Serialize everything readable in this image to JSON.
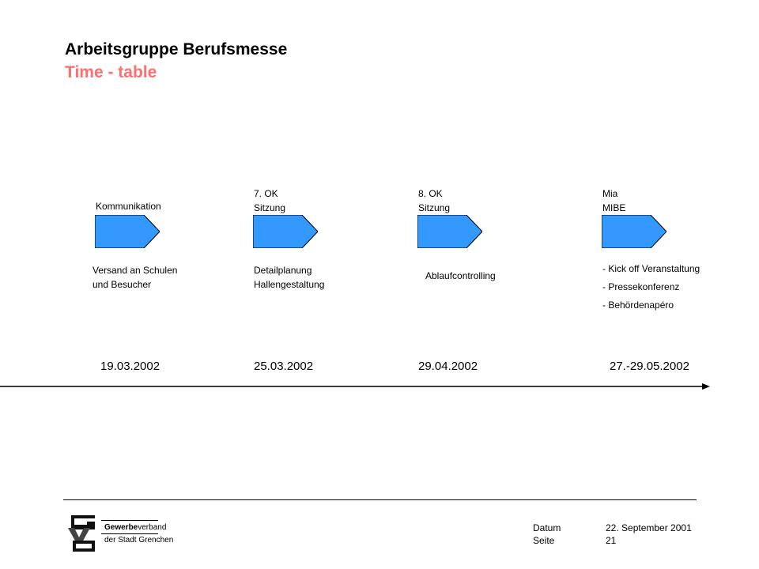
{
  "header": {
    "title": "Arbeitsgruppe Berufsmesse",
    "subtitle": "Time - table"
  },
  "milestones": [
    {
      "top_label": "Kommunikation",
      "top_label_line2": "",
      "bottom_line1": "Versand an Schulen",
      "bottom_line2": "und Besucher",
      "date": "19.03.2002"
    },
    {
      "top_label": "7. OK",
      "top_label_line2": "Sitzung",
      "bottom_line1": "Detailplanung",
      "bottom_line2": "Hallengestaltung",
      "date": "25.03.2002"
    },
    {
      "top_label": "8. OK",
      "top_label_line2": "Sitzung",
      "bottom_line1": "Ablaufcontrolling",
      "bottom_line2": "",
      "date": "29.04.2002"
    },
    {
      "top_label": "Mia",
      "top_label_line2": "MIBE",
      "bottom_items": [
        "- Kick off Veranstaltung",
        "- Pressekonferenz",
        "- Behördenapéro"
      ],
      "date": "27.-29.05.2002"
    }
  ],
  "colors": {
    "milestone_fill": "#3399ff",
    "subtitle": "#ff6f6f"
  },
  "footer": {
    "datum_label": "Datum",
    "datum_value": "22. September 2001",
    "seite_label": "Seite",
    "seite_value": "21"
  },
  "logo": {
    "line1_bold": "Gewerbe",
    "line1_rest": "verband",
    "line2": "der Stadt Grenchen"
  }
}
